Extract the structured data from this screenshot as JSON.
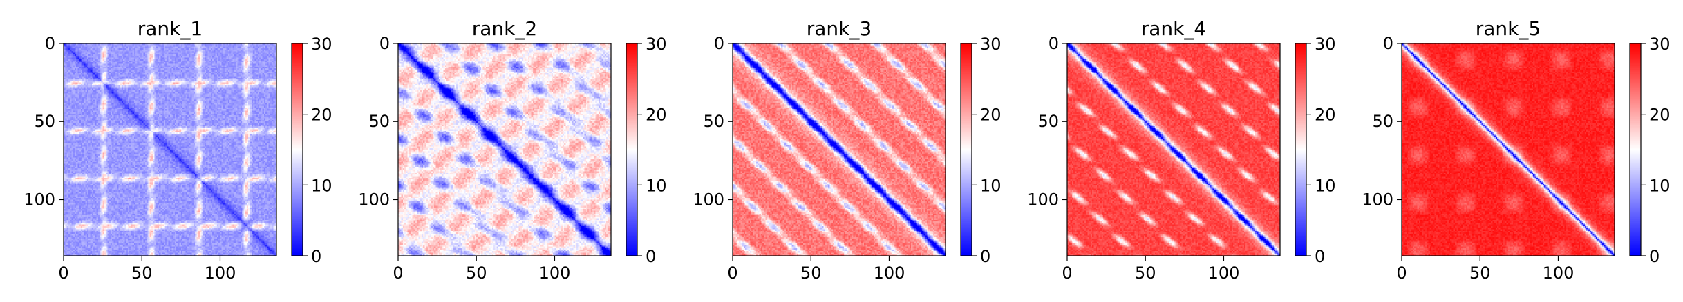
{
  "figure": {
    "colormap": "bwr",
    "colormap_colors": [
      "#0000ff",
      "#ffffff",
      "#ff0000"
    ]
  },
  "chart_data": [
    {
      "type": "heatmap",
      "title": "rank_1",
      "pattern": 1,
      "size": 136,
      "xlim": [
        0,
        136
      ],
      "ylim": [
        136,
        0
      ],
      "xticks": [
        0,
        50,
        100
      ],
      "yticks": [
        0,
        50,
        100
      ],
      "colorbar": {
        "range": [
          0,
          30
        ],
        "ticks": [
          0,
          10,
          20,
          30
        ]
      }
    },
    {
      "type": "heatmap",
      "title": "rank_2",
      "pattern": 2,
      "size": 136,
      "xlim": [
        0,
        136
      ],
      "ylim": [
        136,
        0
      ],
      "xticks": [
        0,
        50,
        100
      ],
      "yticks": [
        0,
        50,
        100
      ],
      "colorbar": {
        "range": [
          0,
          30
        ],
        "ticks": [
          0,
          10,
          20,
          30
        ]
      }
    },
    {
      "type": "heatmap",
      "title": "rank_3",
      "pattern": 3,
      "size": 136,
      "xlim": [
        0,
        136
      ],
      "ylim": [
        136,
        0
      ],
      "xticks": [
        0,
        50,
        100
      ],
      "yticks": [
        0,
        50,
        100
      ],
      "colorbar": {
        "range": [
          0,
          30
        ],
        "ticks": [
          0,
          10,
          20,
          30
        ]
      }
    },
    {
      "type": "heatmap",
      "title": "rank_4",
      "pattern": 4,
      "size": 136,
      "xlim": [
        0,
        136
      ],
      "ylim": [
        136,
        0
      ],
      "xticks": [
        0,
        50,
        100
      ],
      "yticks": [
        0,
        50,
        100
      ],
      "colorbar": {
        "range": [
          0,
          30
        ],
        "ticks": [
          0,
          10,
          20,
          30
        ]
      }
    },
    {
      "type": "heatmap",
      "title": "rank_5",
      "pattern": 5,
      "size": 136,
      "xlim": [
        0,
        136
      ],
      "ylim": [
        136,
        0
      ],
      "xticks": [
        0,
        50,
        100
      ],
      "yticks": [
        0,
        50,
        100
      ],
      "colorbar": {
        "range": [
          0,
          30
        ],
        "ticks": [
          0,
          10,
          20,
          30
        ]
      }
    }
  ]
}
